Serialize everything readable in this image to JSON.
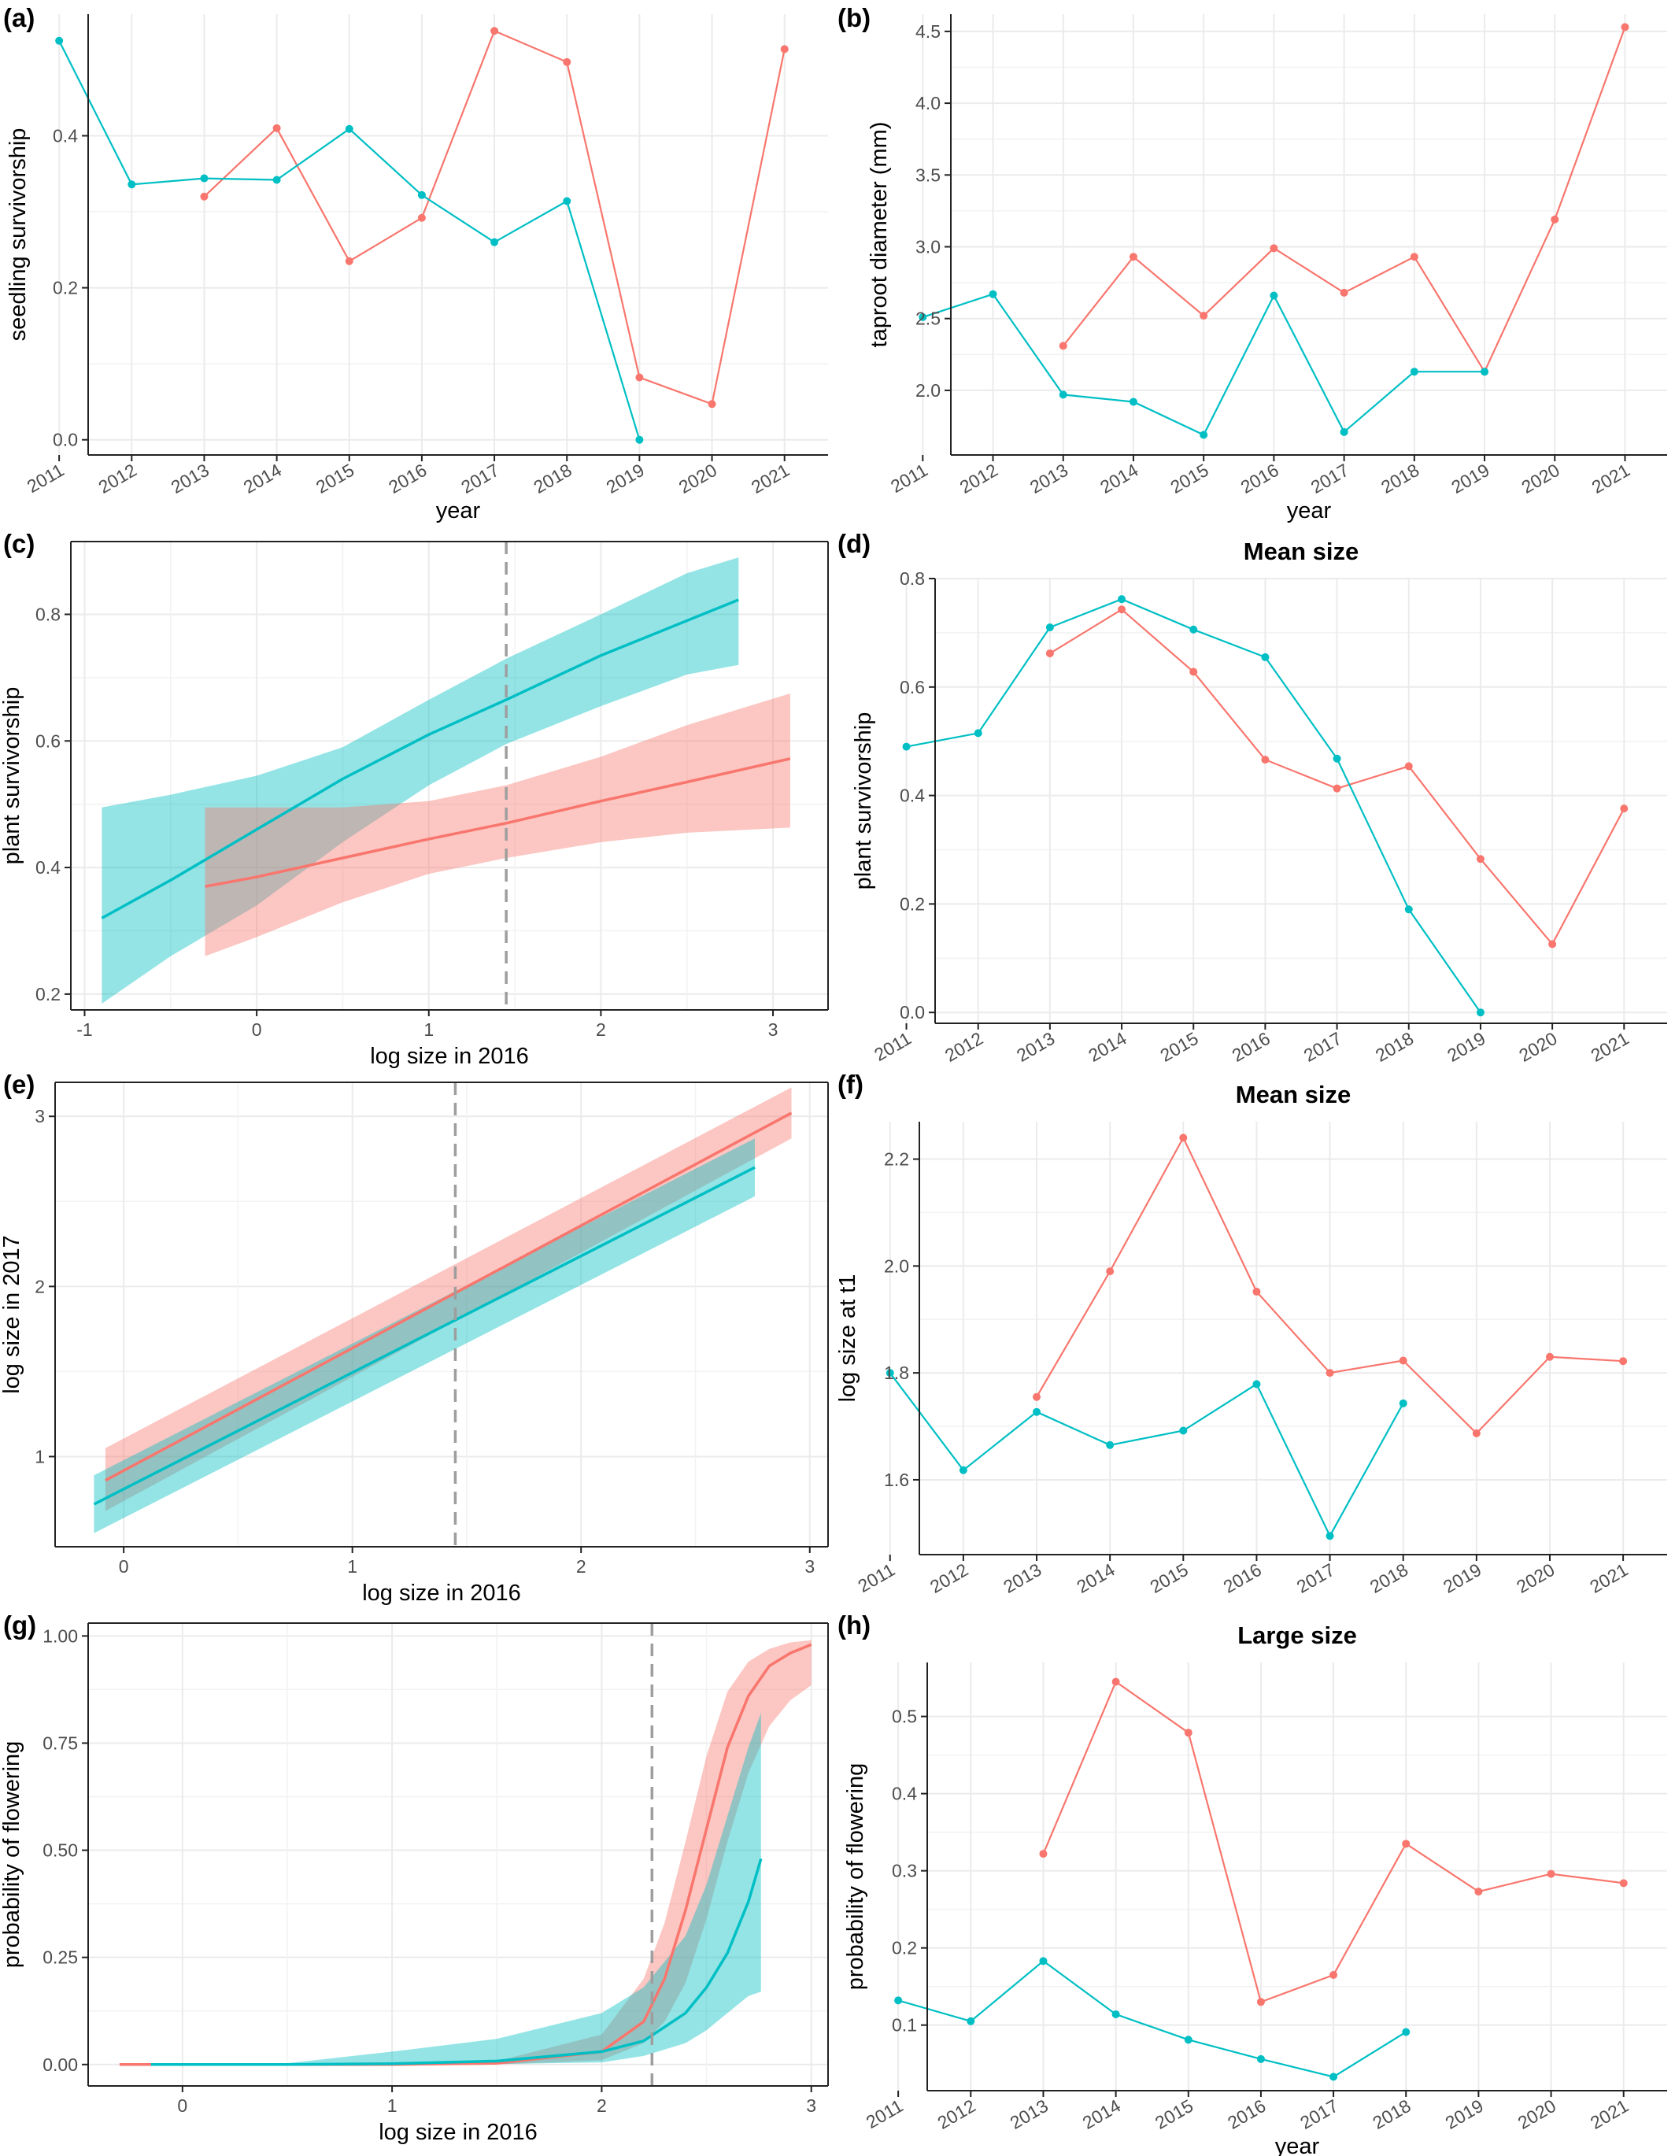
{
  "colors": {
    "red": "#F8766D",
    "teal": "#00BFC4",
    "grey_line": "#8C8C8C",
    "grid": "#EBEBEB",
    "vline": "#9E9E9E",
    "axis": "#222222"
  },
  "chart_data": [
    {
      "id": "a",
      "panel_label": "(a)",
      "type": "line",
      "title": "",
      "xlabel": "year",
      "ylabel": "seedling survivorship",
      "x_categories": [
        "2011",
        "2012",
        "2013",
        "2014",
        "2015",
        "2016",
        "2017",
        "2018",
        "2019",
        "2020",
        "2021"
      ],
      "ylim": [
        -0.02,
        0.56
      ],
      "yticks": [
        0.0,
        0.2,
        0.4
      ],
      "ytick_labels": [
        "0.0",
        "0.2",
        "0.4"
      ],
      "series": [
        {
          "color": "red",
          "values": [
            null,
            null,
            0.32,
            0.41,
            0.235,
            0.292,
            0.538,
            0.497,
            0.082,
            0.047,
            0.514
          ]
        },
        {
          "color": "teal",
          "values": [
            0.525,
            0.336,
            0.344,
            0.342,
            0.409,
            0.322,
            0.26,
            0.314,
            0.0,
            null,
            null
          ]
        }
      ]
    },
    {
      "id": "b",
      "panel_label": "(b)",
      "type": "line",
      "title": "",
      "xlabel": "year",
      "ylabel": "taproot diameter (mm)",
      "x_categories": [
        "2011",
        "2012",
        "2013",
        "2014",
        "2015",
        "2016",
        "2017",
        "2018",
        "2019",
        "2020",
        "2021"
      ],
      "ylim": [
        1.55,
        4.62
      ],
      "yticks": [
        2.0,
        2.5,
        3.0,
        3.5,
        4.0,
        4.5
      ],
      "ytick_labels": [
        "2.0",
        "2.5",
        "3.0",
        "3.5",
        "4.0",
        "4.5"
      ],
      "series": [
        {
          "color": "red",
          "values": [
            null,
            null,
            2.31,
            2.93,
            2.52,
            2.99,
            2.68,
            2.93,
            2.13,
            3.19,
            4.53
          ]
        },
        {
          "color": "teal",
          "values": [
            2.51,
            2.67,
            1.97,
            1.92,
            1.69,
            2.66,
            1.71,
            2.13,
            2.13,
            null,
            null
          ]
        }
      ]
    },
    {
      "id": "c",
      "panel_label": "(c)",
      "type": "area",
      "title": "",
      "xlabel": "log size in 2016",
      "ylabel": "plant survivorship",
      "xlim": [
        -1.08,
        3.32
      ],
      "xticks": [
        -1,
        0,
        1,
        2,
        3
      ],
      "xtick_labels": [
        "-1",
        "0",
        "1",
        "2",
        "3"
      ],
      "ylim": [
        0.175,
        0.915
      ],
      "yticks": [
        0.2,
        0.4,
        0.6,
        0.8
      ],
      "ytick_labels": [
        "0.2",
        "0.4",
        "0.6",
        "0.8"
      ],
      "vline": 1.45,
      "series": [
        {
          "color": "teal",
          "x": [
            -0.9,
            -0.5,
            0.0,
            0.5,
            1.0,
            1.45,
            2.0,
            2.5,
            2.8
          ],
          "y": [
            0.32,
            0.38,
            0.46,
            0.54,
            0.61,
            0.665,
            0.735,
            0.79,
            0.823
          ],
          "lower": [
            0.185,
            0.26,
            0.34,
            0.44,
            0.53,
            0.595,
            0.655,
            0.705,
            0.72
          ],
          "upper": [
            0.495,
            0.515,
            0.545,
            0.59,
            0.665,
            0.73,
            0.8,
            0.865,
            0.89
          ]
        },
        {
          "color": "red",
          "x": [
            -0.3,
            0.0,
            0.5,
            1.0,
            1.45,
            2.0,
            2.5,
            3.1
          ],
          "y": [
            0.37,
            0.385,
            0.415,
            0.445,
            0.47,
            0.505,
            0.535,
            0.572
          ],
          "lower": [
            0.26,
            0.29,
            0.345,
            0.39,
            0.415,
            0.44,
            0.455,
            0.463
          ],
          "upper": [
            0.495,
            0.495,
            0.495,
            0.505,
            0.53,
            0.575,
            0.625,
            0.675
          ]
        }
      ]
    },
    {
      "id": "d",
      "panel_label": "(d)",
      "type": "line",
      "title": "Mean size",
      "xlabel": "",
      "ylabel": "plant survivorship",
      "x_categories": [
        "2011",
        "2012",
        "2013",
        "2014",
        "2015",
        "2016",
        "2017",
        "2018",
        "2019",
        "2020",
        "2021"
      ],
      "ylim": [
        -0.02,
        0.8
      ],
      "yticks": [
        0.0,
        0.2,
        0.4,
        0.6,
        0.8
      ],
      "ytick_labels": [
        "0.0",
        "0.2",
        "0.4",
        "0.6",
        "0.8"
      ],
      "series": [
        {
          "color": "red",
          "values": [
            null,
            null,
            0.662,
            0.743,
            0.628,
            0.466,
            0.413,
            0.454,
            0.283,
            0.126,
            0.376
          ]
        },
        {
          "color": "teal",
          "values": [
            0.49,
            0.515,
            0.71,
            0.762,
            0.706,
            0.655,
            0.468,
            0.19,
            0.0,
            null,
            null
          ]
        }
      ]
    },
    {
      "id": "e",
      "panel_label": "(e)",
      "type": "area",
      "title": "",
      "xlabel": "log size in 2016",
      "ylabel": "log size in 2017",
      "xlim": [
        -0.3,
        3.08
      ],
      "xticks": [
        0,
        1,
        2,
        3
      ],
      "xtick_labels": [
        "0",
        "1",
        "2",
        "3"
      ],
      "ylim": [
        0.47,
        3.2
      ],
      "yticks": [
        1,
        2,
        3
      ],
      "ytick_labels": [
        "1",
        "2",
        "3"
      ],
      "vline": 1.45,
      "series": [
        {
          "color": "red",
          "x": [
            -0.08,
            2.92
          ],
          "y": [
            0.86,
            3.02
          ],
          "lower": [
            0.68,
            2.87
          ],
          "upper": [
            1.05,
            3.17
          ]
        },
        {
          "color": "teal",
          "x": [
            -0.13,
            2.76
          ],
          "y": [
            0.72,
            2.7
          ],
          "lower": [
            0.55,
            2.53
          ],
          "upper": [
            0.89,
            2.87
          ]
        }
      ]
    },
    {
      "id": "f",
      "panel_label": "(f)",
      "type": "line",
      "title": "Mean size",
      "xlabel": "",
      "ylabel": "log size at t1",
      "x_categories": [
        "2011",
        "2012",
        "2013",
        "2014",
        "2015",
        "2016",
        "2017",
        "2018",
        "2019",
        "2020",
        "2021"
      ],
      "ylim": [
        1.46,
        2.27
      ],
      "yticks": [
        1.6,
        1.8,
        2.0,
        2.2
      ],
      "ytick_labels": [
        "1.6",
        "1.8",
        "2.0",
        "2.2"
      ],
      "series": [
        {
          "color": "red",
          "values": [
            null,
            null,
            1.755,
            1.99,
            2.24,
            1.952,
            1.8,
            1.823,
            1.687,
            1.83,
            1.822
          ]
        },
        {
          "color": "teal",
          "values": [
            1.8,
            1.618,
            1.727,
            1.665,
            1.692,
            1.779,
            1.495,
            1.743,
            null,
            null,
            null
          ]
        }
      ]
    },
    {
      "id": "g",
      "panel_label": "(g)",
      "type": "area",
      "title": "",
      "xlabel": "log size in 2016",
      "ylabel": "probability of flowering",
      "xlim": [
        -0.45,
        3.08
      ],
      "xticks": [
        0,
        1,
        2,
        3
      ],
      "xtick_labels": [
        "0",
        "1",
        "2",
        "3"
      ],
      "ylim": [
        -0.05,
        1.03
      ],
      "yticks": [
        0.0,
        0.25,
        0.5,
        0.75,
        1.0
      ],
      "ytick_labels": [
        "0.00",
        "0.25",
        "0.50",
        "0.75",
        "1.00"
      ],
      "vline": 2.24,
      "series": [
        {
          "color": "red",
          "x": [
            -0.3,
            0.5,
            1.0,
            1.5,
            2.0,
            2.2,
            2.3,
            2.4,
            2.5,
            2.6,
            2.7,
            2.8,
            2.9,
            3.0
          ],
          "y": [
            0.0,
            0.0,
            0.0,
            0.003,
            0.03,
            0.1,
            0.2,
            0.36,
            0.55,
            0.74,
            0.86,
            0.93,
            0.96,
            0.98
          ],
          "lower": [
            0.0,
            0.0,
            0.0,
            0.0,
            0.01,
            0.05,
            0.1,
            0.19,
            0.34,
            0.52,
            0.68,
            0.79,
            0.85,
            0.885
          ],
          "upper": [
            0.0,
            0.0,
            0.0,
            0.008,
            0.07,
            0.2,
            0.33,
            0.52,
            0.72,
            0.87,
            0.94,
            0.97,
            0.985,
            0.99
          ]
        },
        {
          "color": "teal",
          "x": [
            -0.15,
            0.5,
            1.0,
            1.5,
            2.0,
            2.2,
            2.4,
            2.5,
            2.6,
            2.7,
            2.76
          ],
          "y": [
            0.0,
            0.0,
            0.002,
            0.008,
            0.03,
            0.055,
            0.12,
            0.18,
            0.26,
            0.38,
            0.48
          ],
          "lower": [
            0.0,
            0.0,
            0.0,
            0.001,
            0.005,
            0.02,
            0.05,
            0.08,
            0.12,
            0.16,
            0.17
          ],
          "upper": [
            0.0,
            0.003,
            0.03,
            0.06,
            0.12,
            0.18,
            0.3,
            0.42,
            0.58,
            0.74,
            0.82
          ]
        }
      ]
    },
    {
      "id": "h",
      "panel_label": "(h)",
      "type": "line",
      "title": "Large size",
      "xlabel": "year",
      "ylabel": "probability of flowering",
      "x_categories": [
        "2011",
        "2012",
        "2013",
        "2014",
        "2015",
        "2016",
        "2017",
        "2018",
        "2019",
        "2020",
        "2021"
      ],
      "ylim": [
        0.015,
        0.57
      ],
      "yticks": [
        0.1,
        0.2,
        0.3,
        0.4,
        0.5
      ],
      "ytick_labels": [
        "0.1",
        "0.2",
        "0.3",
        "0.4",
        "0.5"
      ],
      "series": [
        {
          "color": "red",
          "values": [
            null,
            null,
            0.322,
            0.545,
            0.479,
            0.13,
            0.165,
            0.335,
            0.273,
            0.296,
            0.284
          ]
        },
        {
          "color": "teal",
          "values": [
            0.132,
            0.105,
            0.183,
            0.114,
            0.081,
            0.056,
            0.033,
            0.091,
            null,
            null,
            null
          ]
        }
      ]
    }
  ]
}
